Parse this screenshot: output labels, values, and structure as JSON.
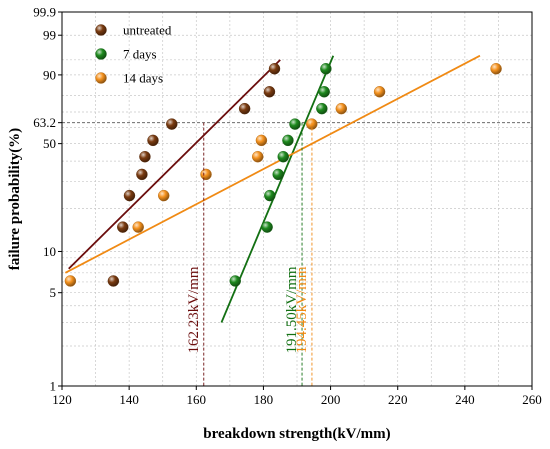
{
  "chart_data": {
    "type": "scatter",
    "scale": "weibull",
    "xlabel": "breakdown strength(kV/mm)",
    "ylabel": "failure probability(%)",
    "xlim": [
      120,
      260
    ],
    "xticks": [
      120,
      140,
      160,
      180,
      200,
      220,
      240,
      260
    ],
    "yticks": [
      1,
      5,
      10,
      50,
      63.2,
      90,
      99,
      99.9
    ],
    "ylim": [
      1,
      99.9
    ],
    "grid": true,
    "legend_position": "top-left",
    "reference_line_y": 63.2,
    "series": [
      {
        "name": "untreated",
        "color": "#7a3b10",
        "line_color": "#6b0d0d",
        "points": [
          [
            135.3,
            6.1
          ],
          [
            138.1,
            14.9
          ],
          [
            140.1,
            24.4
          ],
          [
            143.8,
            33.3
          ],
          [
            144.7,
            42.4
          ],
          [
            147.1,
            52.0
          ],
          [
            152.7,
            62.3
          ],
          [
            174.4,
            72.1
          ],
          [
            181.8,
            82.0
          ],
          [
            183.3,
            92.3
          ]
        ],
        "fit_line": [
          [
            122,
            7.5
          ],
          [
            185,
            95.0
          ]
        ],
        "eta": 162.23,
        "eta_label": "162.23kV/mm"
      },
      {
        "name": "7 days",
        "color": "#1e8a1e",
        "line_color": "#137013",
        "points": [
          [
            171.6,
            6.1
          ],
          [
            181.1,
            14.9
          ],
          [
            181.9,
            24.4
          ],
          [
            184.4,
            33.3
          ],
          [
            185.9,
            42.4
          ],
          [
            187.3,
            52.0
          ],
          [
            189.4,
            62.3
          ],
          [
            197.4,
            72.1
          ],
          [
            198.1,
            82.0
          ],
          [
            198.6,
            92.3
          ]
        ],
        "fit_line": [
          [
            167.5,
            3.0
          ],
          [
            200.8,
            96.0
          ]
        ],
        "eta": 191.5,
        "eta_label": "191.50kV/mm"
      },
      {
        "name": "14 days",
        "color": "#f5921e",
        "line_color": "#f08a14",
        "points": [
          [
            122.5,
            6.1
          ],
          [
            142.7,
            14.9
          ],
          [
            150.3,
            24.4
          ],
          [
            162.9,
            33.3
          ],
          [
            178.3,
            42.4
          ],
          [
            179.4,
            52.0
          ],
          [
            194.4,
            62.3
          ],
          [
            203.2,
            72.1
          ],
          [
            214.6,
            82.0
          ],
          [
            249.3,
            92.3
          ]
        ],
        "fit_line": [
          [
            121,
            7.0
          ],
          [
            244.5,
            96.0
          ]
        ],
        "eta": 194.45,
        "eta_label": "194.45kV/mm"
      }
    ]
  }
}
